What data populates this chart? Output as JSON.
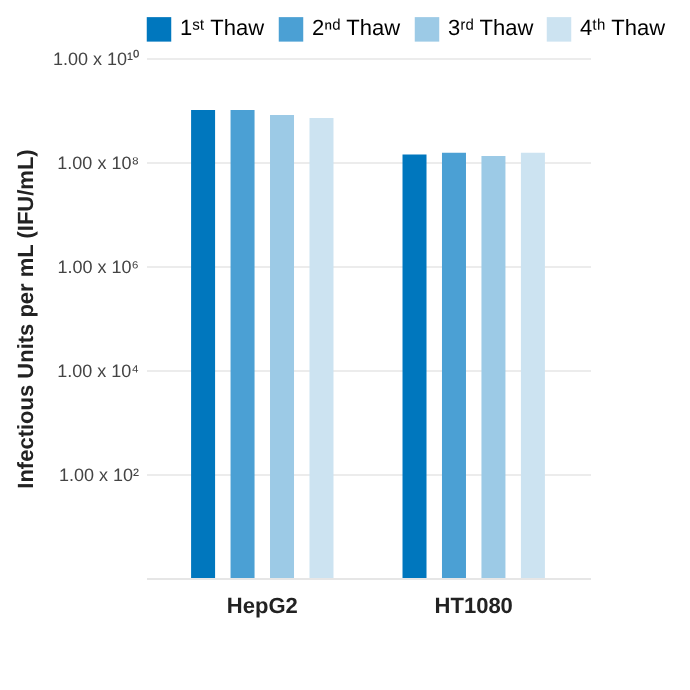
{
  "chart_data": {
    "type": "bar",
    "ylabel": "Infectious Units per mL (IFU/mL)",
    "categories": [
      "HepG2",
      "HT1080"
    ],
    "series": [
      {
        "name": "1ˢᵗ Thaw",
        "color": "#0077be",
        "values": [
          1000000000.0,
          140000000.0
        ]
      },
      {
        "name": "2ⁿᵈ Thaw",
        "color": "#4ba0d4",
        "values": [
          1000000000.0,
          150000000.0
        ]
      },
      {
        "name": "3ʳᵈ Thaw",
        "color": "#9ccae6",
        "values": [
          800000000.0,
          130000000.0
        ]
      },
      {
        "name": "4ᵗʰ Thaw",
        "color": "#cce3f1",
        "values": [
          700000000.0,
          150000000.0
        ]
      }
    ],
    "log": true,
    "ylim": [
      1,
      10000000000.0
    ],
    "yticks": [
      {
        "value": 100,
        "label": "1.00 x 10²"
      },
      {
        "value": 10000,
        "label": "1.00 x 10⁴"
      },
      {
        "value": 1000000,
        "label": "1.00 x 10⁶"
      },
      {
        "value": 100000000,
        "label": "1.00 x 10⁸"
      },
      {
        "value": 10000000000,
        "label": "1.00 x 10¹⁰"
      }
    ],
    "grid": "y",
    "legend": "top"
  }
}
